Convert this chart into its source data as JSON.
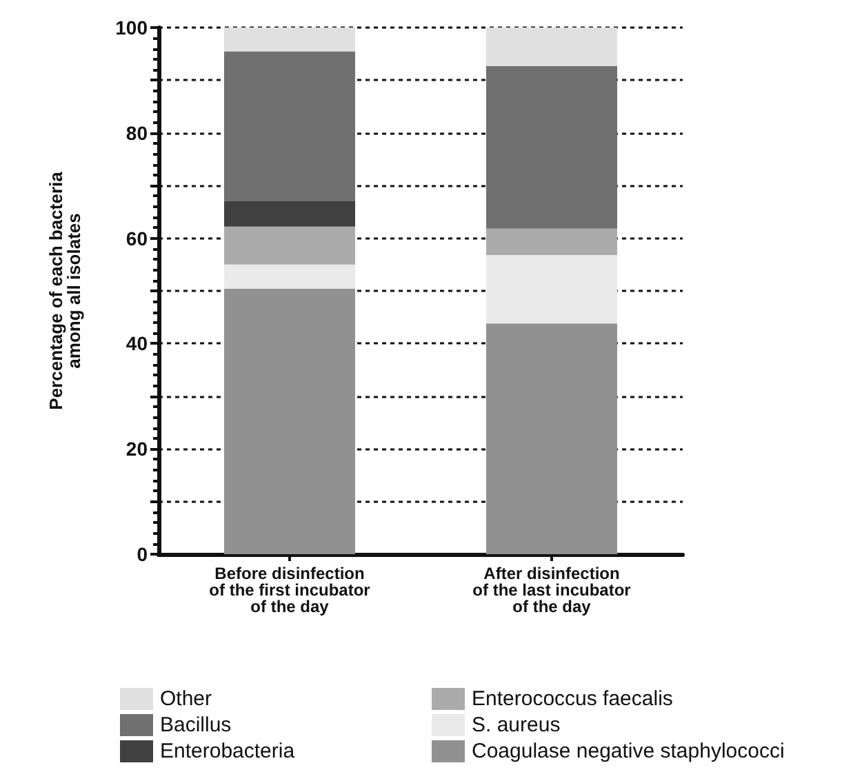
{
  "chart_data": {
    "type": "bar",
    "stacked": true,
    "ylabel": "Percentage of each bacteria\namong all isolates",
    "categories": [
      "Before disinfection\nof the first incubator\nof the day",
      "After disinfection\nof the last incubator\nof the day"
    ],
    "series": [
      {
        "name": "Coagulase negative staphylococci",
        "color": "#919191",
        "values": [
          50.4,
          43.8
        ]
      },
      {
        "name": "S. aureus",
        "color": "#eaeaea",
        "values": [
          4.6,
          13
        ]
      },
      {
        "name": "Enterococcus faecalis",
        "color": "#ababab",
        "values": [
          7.2,
          5
        ]
      },
      {
        "name": "Enterobacteria",
        "color": "#404040",
        "values": [
          4.8,
          0
        ]
      },
      {
        "name": "Bacillus",
        "color": "#707070",
        "values": [
          28.5,
          30.9
        ]
      },
      {
        "name": "Other",
        "color": "#e0e0e0",
        "values": [
          4.5,
          7.3
        ]
      }
    ],
    "ylim": [
      0,
      100
    ],
    "yticks": [
      0,
      {
        "value": 10,
        "label": null
      },
      20,
      {
        "value": 30,
        "label": null
      },
      40,
      {
        "value": 50,
        "label": null
      },
      60,
      {
        "value": 70,
        "label": null
      },
      80,
      {
        "value": 90,
        "label": null
      },
      100
    ],
    "grid": "y",
    "legend": "bottom"
  }
}
